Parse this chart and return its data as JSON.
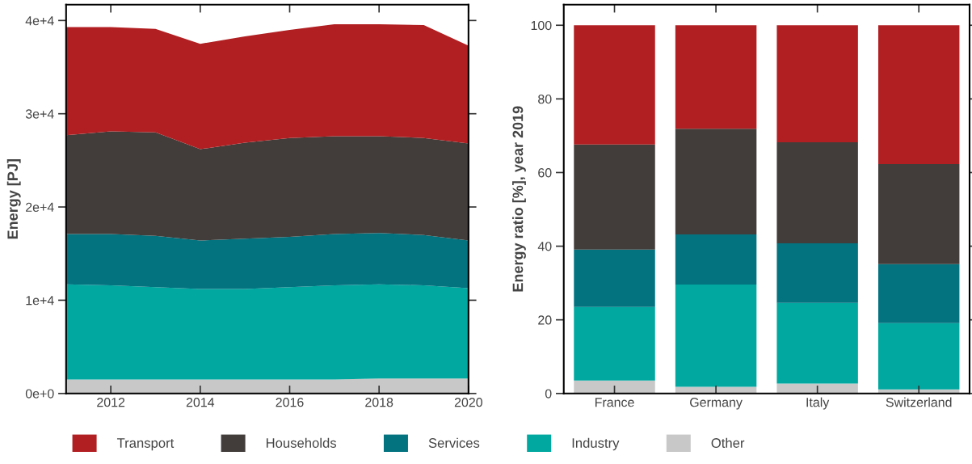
{
  "chart_data": [
    {
      "type": "area",
      "stacked": true,
      "ylabel": "Energy [PJ]",
      "x": [
        2011,
        2012,
        2013,
        2014,
        2015,
        2016,
        2017,
        2018,
        2019,
        2020
      ],
      "xlim": [
        2011,
        2020
      ],
      "xticks": [
        2012,
        2014,
        2016,
        2018,
        2020
      ],
      "ylim": [
        0,
        41700
      ],
      "yticks": [
        {
          "value": 0,
          "label": "0e+0"
        },
        {
          "value": 10000,
          "label": "1e+4"
        },
        {
          "value": 20000,
          "label": "2e+4"
        },
        {
          "value": 30000,
          "label": "3e+4"
        },
        {
          "value": 40000,
          "label": "4e+4"
        }
      ],
      "grid": false,
      "legend": "bottom",
      "series": [
        {
          "name": "Other",
          "color": "#c8c8c8",
          "values": [
            1500,
            1500,
            1500,
            1500,
            1500,
            1500,
            1500,
            1600,
            1600,
            1600
          ]
        },
        {
          "name": "Industry",
          "color": "#00a8a0",
          "values": [
            10200,
            10100,
            9900,
            9700,
            9700,
            9900,
            10100,
            10100,
            10000,
            9700
          ]
        },
        {
          "name": "Services",
          "color": "#037380",
          "values": [
            5400,
            5500,
            5500,
            5200,
            5400,
            5400,
            5500,
            5500,
            5400,
            5100
          ]
        },
        {
          "name": "Households",
          "color": "#423d3a",
          "values": [
            10600,
            11000,
            11100,
            9800,
            10300,
            10600,
            10500,
            10400,
            10400,
            10400
          ]
        },
        {
          "name": "Transport",
          "color": "#b21f22",
          "values": [
            11600,
            11200,
            11100,
            11300,
            11400,
            11600,
            12000,
            12000,
            12100,
            10500
          ]
        }
      ]
    },
    {
      "type": "bar",
      "stacked": true,
      "ylabel": "Energy ratio [%], year 2019",
      "categories": [
        "France",
        "Germany",
        "Italy",
        "Switzerland"
      ],
      "ylim": [
        0,
        105.6
      ],
      "yticks": [
        0,
        20,
        40,
        60,
        80,
        100
      ],
      "grid": false,
      "legend": "bottom",
      "series": [
        {
          "name": "Other",
          "color": "#c8c8c8",
          "values": [
            3.5,
            1.8,
            2.7,
            1.1
          ]
        },
        {
          "name": "Industry",
          "color": "#00a8a0",
          "values": [
            20.0,
            27.8,
            21.9,
            18.0
          ]
        },
        {
          "name": "Services",
          "color": "#037380",
          "values": [
            15.6,
            13.6,
            16.2,
            16.0
          ]
        },
        {
          "name": "Households",
          "color": "#423d3a",
          "values": [
            28.5,
            28.7,
            27.4,
            27.2
          ]
        },
        {
          "name": "Transport",
          "color": "#b21f22",
          "values": [
            32.4,
            28.1,
            31.8,
            37.7
          ]
        }
      ]
    }
  ]
}
